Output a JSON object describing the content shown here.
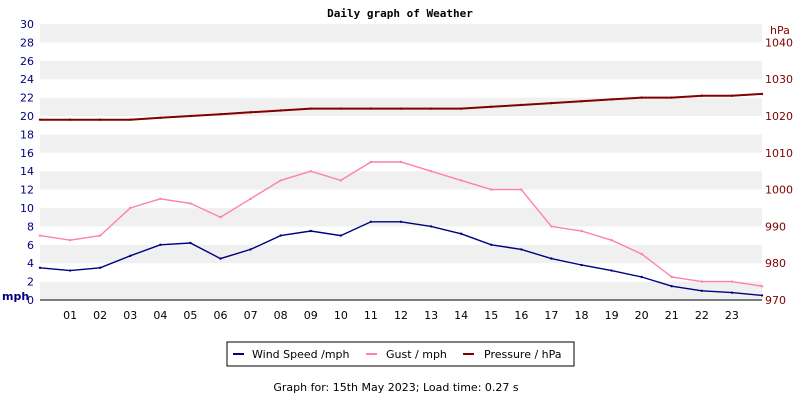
{
  "chart_data": {
    "type": "line",
    "title": "Daily graph of Weather",
    "x_label_ticks": [
      "01",
      "02",
      "03",
      "04",
      "05",
      "06",
      "07",
      "08",
      "09",
      "10",
      "11",
      "12",
      "13",
      "14",
      "15",
      "16",
      "17",
      "18",
      "19",
      "20",
      "21",
      "22",
      "23"
    ],
    "x_range": [
      0,
      24
    ],
    "grid": "horizontal bands",
    "legend_position": "bottom",
    "left_axis": {
      "unit": "mph",
      "range": [
        0,
        30
      ],
      "ticks": [
        0,
        2,
        4,
        6,
        8,
        10,
        12,
        14,
        16,
        18,
        20,
        22,
        24,
        26,
        28,
        30
      ],
      "color": "#000080"
    },
    "right_axis": {
      "unit": "hPa",
      "range": [
        970,
        1045
      ],
      "ticks": [
        970,
        980,
        990,
        1000,
        1010,
        1020,
        1030,
        1040
      ],
      "color": "#800000"
    },
    "series": [
      {
        "name": "Wind Speed /mph",
        "axis": "left",
        "color": "#000080",
        "x": [
          0,
          1,
          2,
          3,
          4,
          5,
          6,
          7,
          8,
          9,
          10,
          11,
          12,
          13,
          14,
          15,
          16,
          17,
          18,
          19,
          20,
          21,
          22,
          23,
          24
        ],
        "y": [
          3.5,
          3.2,
          3.5,
          4.8,
          6.0,
          6.2,
          4.5,
          5.5,
          7.0,
          7.5,
          7.0,
          8.5,
          8.5,
          8.0,
          7.2,
          6.0,
          5.5,
          4.5,
          3.8,
          3.2,
          2.5,
          1.5,
          1.0,
          0.8,
          0.5
        ]
      },
      {
        "name": "Gust / mph",
        "axis": "left",
        "color": "#ff80a8",
        "x": [
          0,
          1,
          2,
          3,
          4,
          5,
          6,
          7,
          8,
          9,
          10,
          11,
          12,
          13,
          14,
          15,
          16,
          17,
          18,
          19,
          20,
          21,
          22,
          23,
          24
        ],
        "y": [
          7.0,
          6.5,
          7.0,
          10.0,
          11.0,
          10.5,
          9.0,
          11.0,
          13.0,
          14.0,
          13.0,
          15.0,
          15.0,
          14.0,
          13.0,
          12.0,
          12.0,
          8.0,
          7.5,
          6.5,
          5.0,
          2.5,
          2.0,
          2.0,
          1.5
        ]
      },
      {
        "name": "Pressure / hPa",
        "axis": "right",
        "color": "#800000",
        "x": [
          0,
          1,
          2,
          3,
          4,
          5,
          6,
          7,
          8,
          9,
          10,
          11,
          12,
          13,
          14,
          15,
          16,
          17,
          18,
          19,
          20,
          21,
          22,
          23,
          24
        ],
        "y": [
          1019,
          1019,
          1019,
          1019,
          1019.5,
          1020,
          1020.5,
          1021,
          1021.5,
          1022,
          1022,
          1022,
          1022,
          1022,
          1022,
          1022.5,
          1023,
          1023.5,
          1024,
          1024.5,
          1025,
          1025,
          1025.5,
          1025.5,
          1026
        ]
      }
    ]
  },
  "legend": {
    "wind": "Wind Speed /mph",
    "gust": "Gust / mph",
    "pressure": "Pressure / hPa"
  },
  "footer": "Graph for: 15th May 2023; Load time: 0.27 s"
}
